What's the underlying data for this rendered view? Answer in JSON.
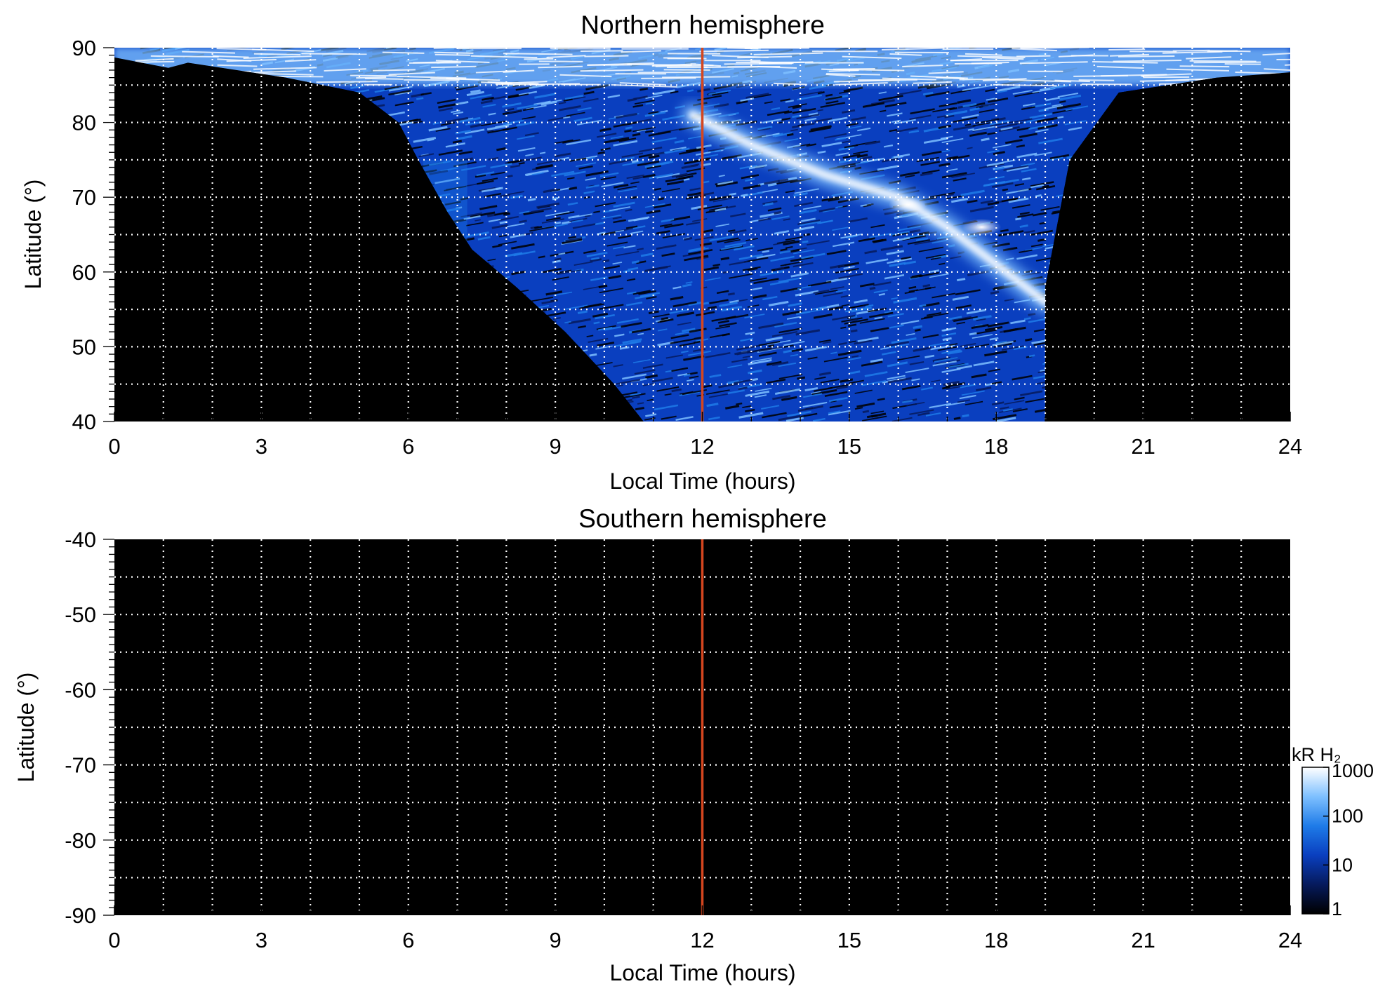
{
  "chart_data": [
    {
      "type": "heatmap",
      "title": "Northern hemisphere",
      "xlabel": "Local Time (hours)",
      "ylabel": "Latitude (°)",
      "xlim": [
        0,
        24
      ],
      "ylim": [
        40,
        90
      ],
      "x_ticks": [
        "0",
        "3",
        "6",
        "9",
        "12",
        "15",
        "18",
        "21",
        "24"
      ],
      "y_ticks": [
        "40",
        "50",
        "60",
        "70",
        "80",
        "90"
      ],
      "grid": true,
      "reference_line": {
        "x": 12,
        "color": "#d4461f"
      },
      "emission_region": {
        "description_units": "local time hours / latitude degrees",
        "dawn_boundary": [
          [
            1.5,
            88
          ],
          [
            3.5,
            86
          ],
          [
            5,
            84
          ],
          [
            5.8,
            80
          ],
          [
            6.2,
            75
          ],
          [
            6.8,
            68
          ],
          [
            7.3,
            63
          ],
          [
            8.2,
            58
          ],
          [
            9.2,
            52
          ],
          [
            10.2,
            45
          ],
          [
            10.8,
            40
          ]
        ],
        "dusk_boundary_lt": 19,
        "bright_arc": [
          [
            11.8,
            81
          ],
          [
            13,
            77
          ],
          [
            14.5,
            73
          ],
          [
            16,
            70
          ],
          [
            17,
            66
          ],
          [
            18,
            61
          ],
          [
            19,
            56
          ]
        ],
        "bright_spots": [
          [
            16.2,
            69
          ],
          [
            17.7,
            66
          ]
        ]
      }
    },
    {
      "type": "heatmap",
      "title": "Southern hemisphere",
      "xlabel": "Local Time (hours)",
      "ylabel": "Latitude (°)",
      "xlim": [
        0,
        24
      ],
      "ylim": [
        -90,
        -40
      ],
      "x_ticks": [
        "0",
        "3",
        "6",
        "9",
        "12",
        "15",
        "18",
        "21",
        "24"
      ],
      "y_ticks": [
        "-40",
        "-50",
        "-60",
        "-70",
        "-80",
        "-90"
      ],
      "grid": true,
      "reference_line": {
        "x": 12,
        "color": "#d4461f"
      },
      "emission_region": null
    }
  ],
  "colorbar": {
    "title": "kR H₂",
    "scale": "log",
    "range": [
      1,
      1000
    ],
    "ticks": [
      "1000",
      "100",
      "10",
      "1"
    ],
    "colors": [
      "#000000",
      "#061a5c",
      "#0a3fbf",
      "#1e7be8",
      "#7ec0ff",
      "#ffffff"
    ]
  }
}
